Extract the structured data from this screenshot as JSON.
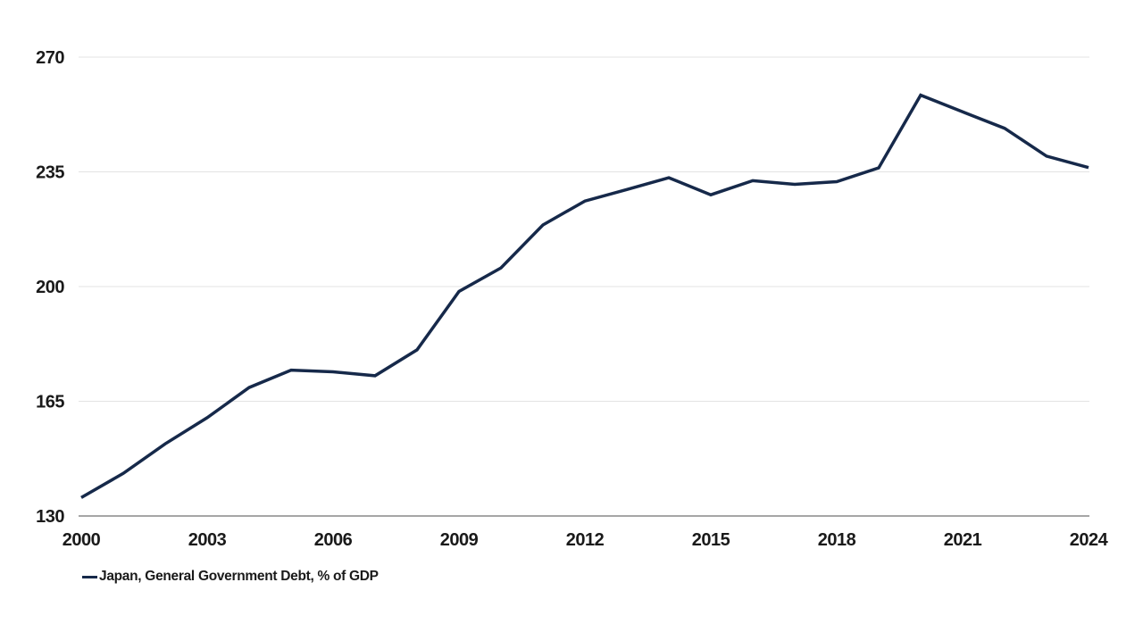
{
  "chart_data": {
    "type": "line",
    "title": "",
    "xlabel": "",
    "ylabel": "",
    "x": [
      2000,
      2001,
      2002,
      2003,
      2004,
      2005,
      2006,
      2007,
      2008,
      2009,
      2010,
      2011,
      2012,
      2013,
      2014,
      2015,
      2016,
      2017,
      2018,
      2019,
      2020,
      2021,
      2022,
      2023,
      2024
    ],
    "series": [
      {
        "name": "Japan, General Government Debt, % of GDP",
        "color": "#16294a",
        "values": [
          135.6,
          143.0,
          152.0,
          160.0,
          169.2,
          174.5,
          174.0,
          172.8,
          180.7,
          198.5,
          205.7,
          218.8,
          226.1,
          229.6,
          233.2,
          228.0,
          232.3,
          231.2,
          232.0,
          236.2,
          258.4,
          253.3,
          248.3,
          239.8,
          236.3
        ]
      }
    ],
    "ylim": [
      130,
      270
    ],
    "xlim": [
      2000,
      2024
    ],
    "y_ticks": [
      "130",
      "165",
      "200",
      "235",
      "270"
    ],
    "y_tick_values": [
      130,
      165,
      200,
      235,
      270
    ],
    "x_ticks": [
      "2000",
      "2003",
      "2006",
      "2009",
      "2012",
      "2015",
      "2018",
      "2021",
      "2024"
    ],
    "x_tick_values": [
      2000,
      2003,
      2006,
      2009,
      2012,
      2015,
      2018,
      2021,
      2024
    ],
    "grid": "horizontal",
    "legend_position": "bottom-left",
    "legend": {
      "label": "Japan, General Government Debt, % of GDP"
    },
    "colors": {
      "line": "#16294a",
      "gridline": "#e3e3e3",
      "axis_line": "#4d4d4d",
      "tick_label": "#1a1a1a",
      "background": "#ffffff"
    }
  }
}
